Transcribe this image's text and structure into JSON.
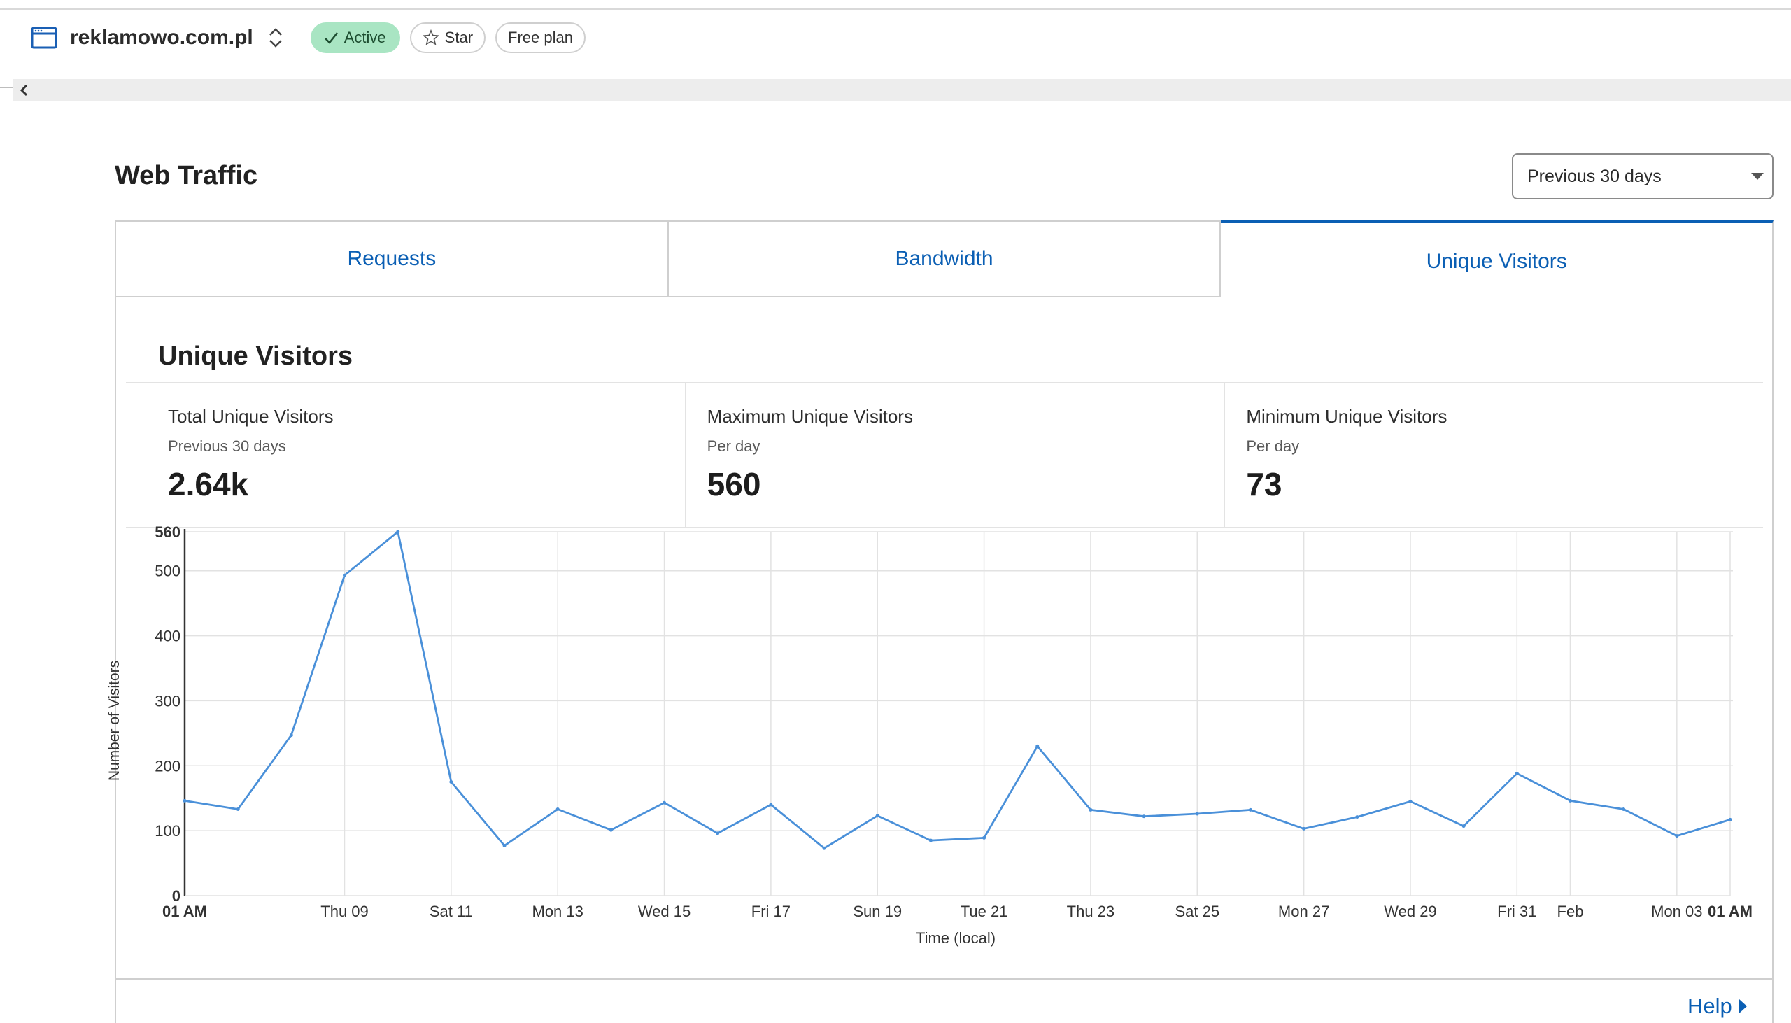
{
  "header": {
    "site_name": "reklamowo.com.pl",
    "status_badge": "Active",
    "star_label": "Star",
    "plan_badge": "Free plan"
  },
  "main": {
    "title": "Web Traffic",
    "range_select": "Previous 30 days",
    "tabs": [
      {
        "label": "Requests",
        "selected": false
      },
      {
        "label": "Bandwidth",
        "selected": false
      },
      {
        "label": "Unique Visitors",
        "selected": true
      }
    ],
    "section_title": "Unique Visitors",
    "stats": [
      {
        "label": "Total Unique Visitors",
        "sub": "Previous 30 days",
        "value": "2.64k"
      },
      {
        "label": "Maximum Unique Visitors",
        "sub": "Per day",
        "value": "560"
      },
      {
        "label": "Minimum Unique Visitors",
        "sub": "Per day",
        "value": "73"
      }
    ],
    "help_label": "Help"
  },
  "colors": {
    "accent": "#0b5fb4",
    "line": "#4a90d9",
    "active_badge": "#a9e5c3"
  },
  "chart_data": {
    "type": "line",
    "xlabel": "Time (local)",
    "ylabel": "Number of Visitors",
    "ylim": [
      0,
      560
    ],
    "yticks": [
      "0",
      "100",
      "200",
      "300",
      "400",
      "500",
      "560"
    ],
    "xticks": [
      {
        "i": 0,
        "label": "01 AM",
        "bold": true
      },
      {
        "i": 3,
        "label": "Thu 09"
      },
      {
        "i": 5,
        "label": "Sat 11"
      },
      {
        "i": 7,
        "label": "Mon 13"
      },
      {
        "i": 9,
        "label": "Wed 15"
      },
      {
        "i": 11,
        "label": "Fri 17"
      },
      {
        "i": 13,
        "label": "Sun 19"
      },
      {
        "i": 15,
        "label": "Tue 21"
      },
      {
        "i": 17,
        "label": "Thu 23"
      },
      {
        "i": 19,
        "label": "Sat 25"
      },
      {
        "i": 21,
        "label": "Mon 27"
      },
      {
        "i": 23,
        "label": "Wed 29"
      },
      {
        "i": 25,
        "label": "Fri 31"
      },
      {
        "i": 26,
        "label": "Feb"
      },
      {
        "i": 28,
        "label": "Mon 03"
      },
      {
        "i": 29,
        "label": "01 AM",
        "bold": true
      }
    ],
    "grid": true,
    "series": [
      {
        "values": [
          146,
          133,
          247,
          493,
          560,
          175,
          77,
          133,
          101,
          143,
          96,
          140,
          73,
          123,
          85,
          89,
          230,
          132,
          122,
          126,
          132,
          103,
          121,
          145,
          107,
          188,
          146,
          133,
          92,
          117
        ]
      }
    ]
  }
}
